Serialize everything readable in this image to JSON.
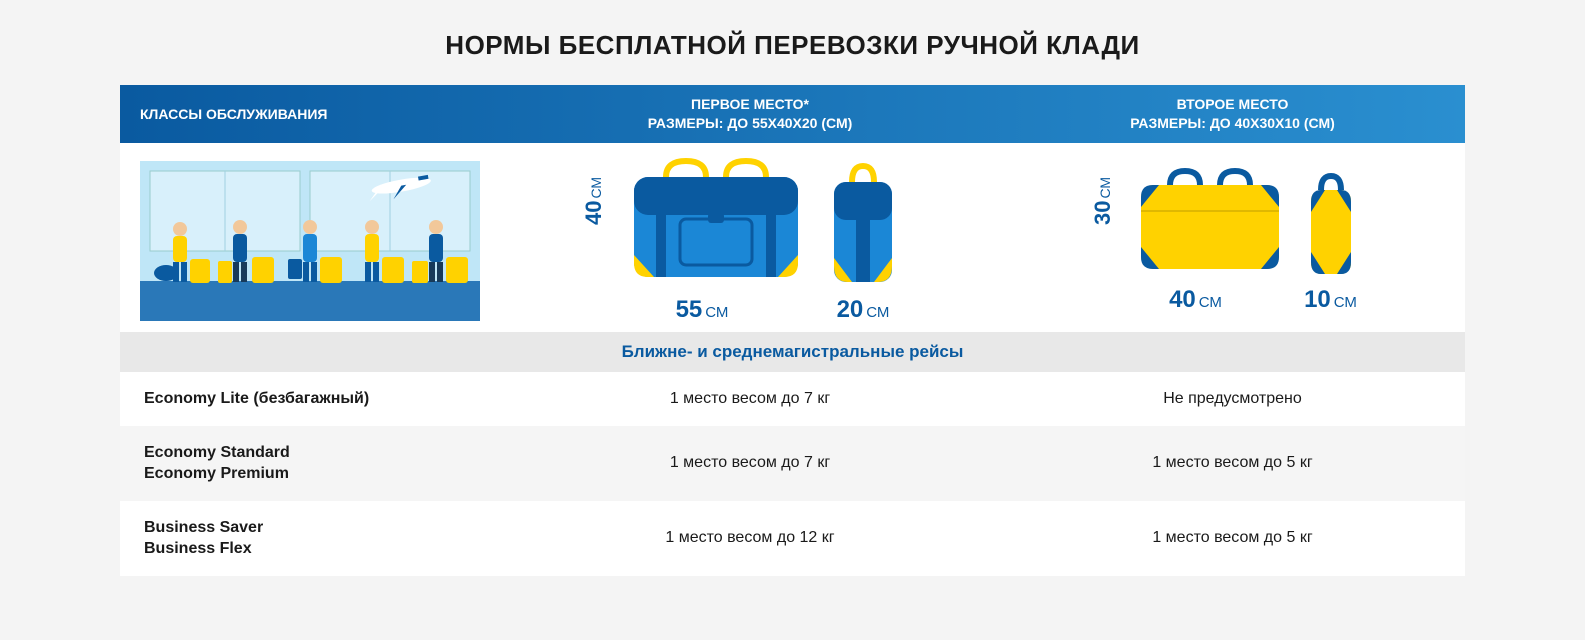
{
  "title": "НОРМЫ БЕСПЛАТНОЙ ПЕРЕВОЗКИ РУЧНОЙ КЛАДИ",
  "header": {
    "col1": "КЛАССЫ ОБСЛУЖИВАНИЯ",
    "col2_l1": "ПЕРВОЕ МЕСТО*",
    "col2_l2": "РАЗМЕРЫ: ДО 55Х40Х20 (СМ)",
    "col3_l1": "ВТОРОЕ МЕСТО",
    "col3_l2": "РАЗМЕРЫ: ДО 40Х30Х10 (СМ)"
  },
  "subheader": "Ближне- и среднемагистральные рейсы",
  "bag1": {
    "height": "40",
    "height_unit": "СМ",
    "width": "55",
    "width_unit": "СМ",
    "depth": "20",
    "depth_unit": "СМ",
    "main_color": "#1b87d6",
    "dark_color": "#0a5aa0",
    "accent_color": "#ffd200"
  },
  "bag2": {
    "height": "30",
    "height_unit": "СМ",
    "width": "40",
    "width_unit": "СМ",
    "depth": "10",
    "depth_unit": "СМ",
    "main_color": "#ffd200",
    "dark_color": "#0a5aa0"
  },
  "rows": [
    {
      "class_l1": "Economy Lite (безбагажный)",
      "class_l2": "",
      "c2": "1 место весом до 7 кг",
      "c3": "Не предусмотрено",
      "alt": false
    },
    {
      "class_l1": "Economy Standard",
      "class_l2": "Economy Premium",
      "c2": "1 место весом до 7 кг",
      "c3": "1 место весом до 5 кг",
      "alt": true
    },
    {
      "class_l1": "Business Saver",
      "class_l2": "Business Flex",
      "c2": "1 место весом до 12 кг",
      "c3": "1 место весом до 5 кг",
      "alt": false
    }
  ],
  "colors": {
    "header_grad_from": "#0a5aa0",
    "header_grad_to": "#2a8fd0",
    "subheader_bg": "#e8e8e8",
    "subheader_text": "#0a5aa0",
    "row_alt_bg": "#f5f5f5",
    "page_bg": "#f4f4f4"
  },
  "airport_scene": {
    "sky": "#bfe6f7",
    "floor": "#2a78b8",
    "luggage": "#ffd200",
    "luggage_dark": "#0a5aa0",
    "plane": "#ffffff"
  }
}
